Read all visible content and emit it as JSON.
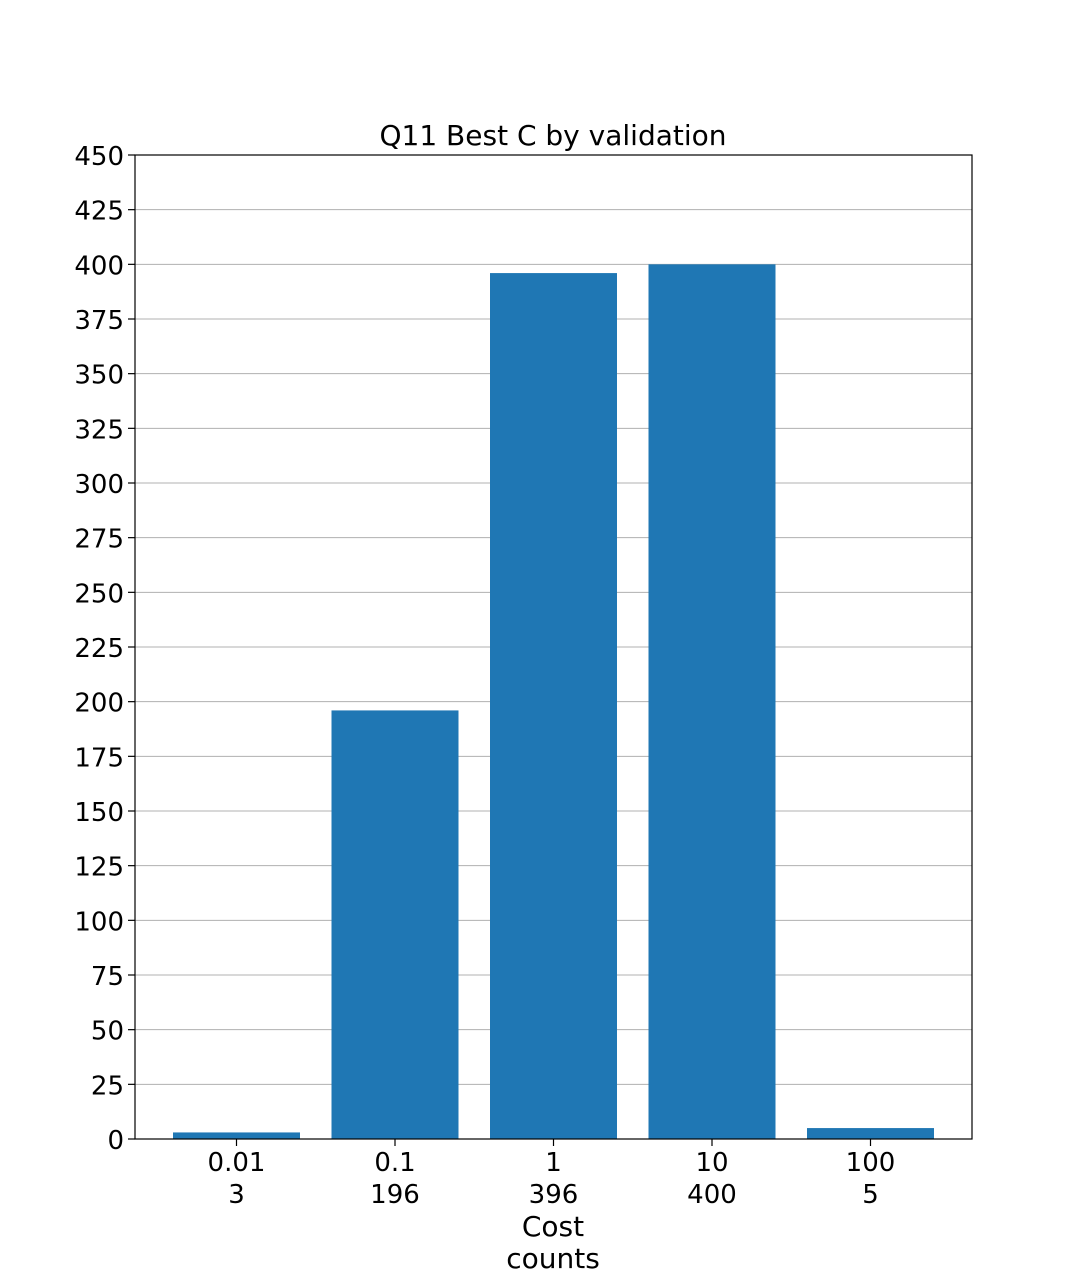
{
  "chart_data": {
    "type": "bar",
    "title": "Q11 Best C by validation",
    "categories": [
      "0.01",
      "0.1",
      "1",
      "10",
      "100"
    ],
    "count_labels": [
      "3",
      "196",
      "396",
      "400",
      "5"
    ],
    "values": [
      3,
      196,
      396,
      400,
      5
    ],
    "xlabel": "Cost",
    "xlabel_line2": "counts",
    "ylabel": "",
    "ylim": [
      0,
      450
    ],
    "yticks": [
      0,
      25,
      50,
      75,
      100,
      125,
      150,
      175,
      200,
      225,
      250,
      275,
      300,
      325,
      350,
      375,
      400,
      425,
      450
    ],
    "grid": "horizontal",
    "bar_color": "#1f77b4",
    "grid_color": "#b0b0b0"
  }
}
